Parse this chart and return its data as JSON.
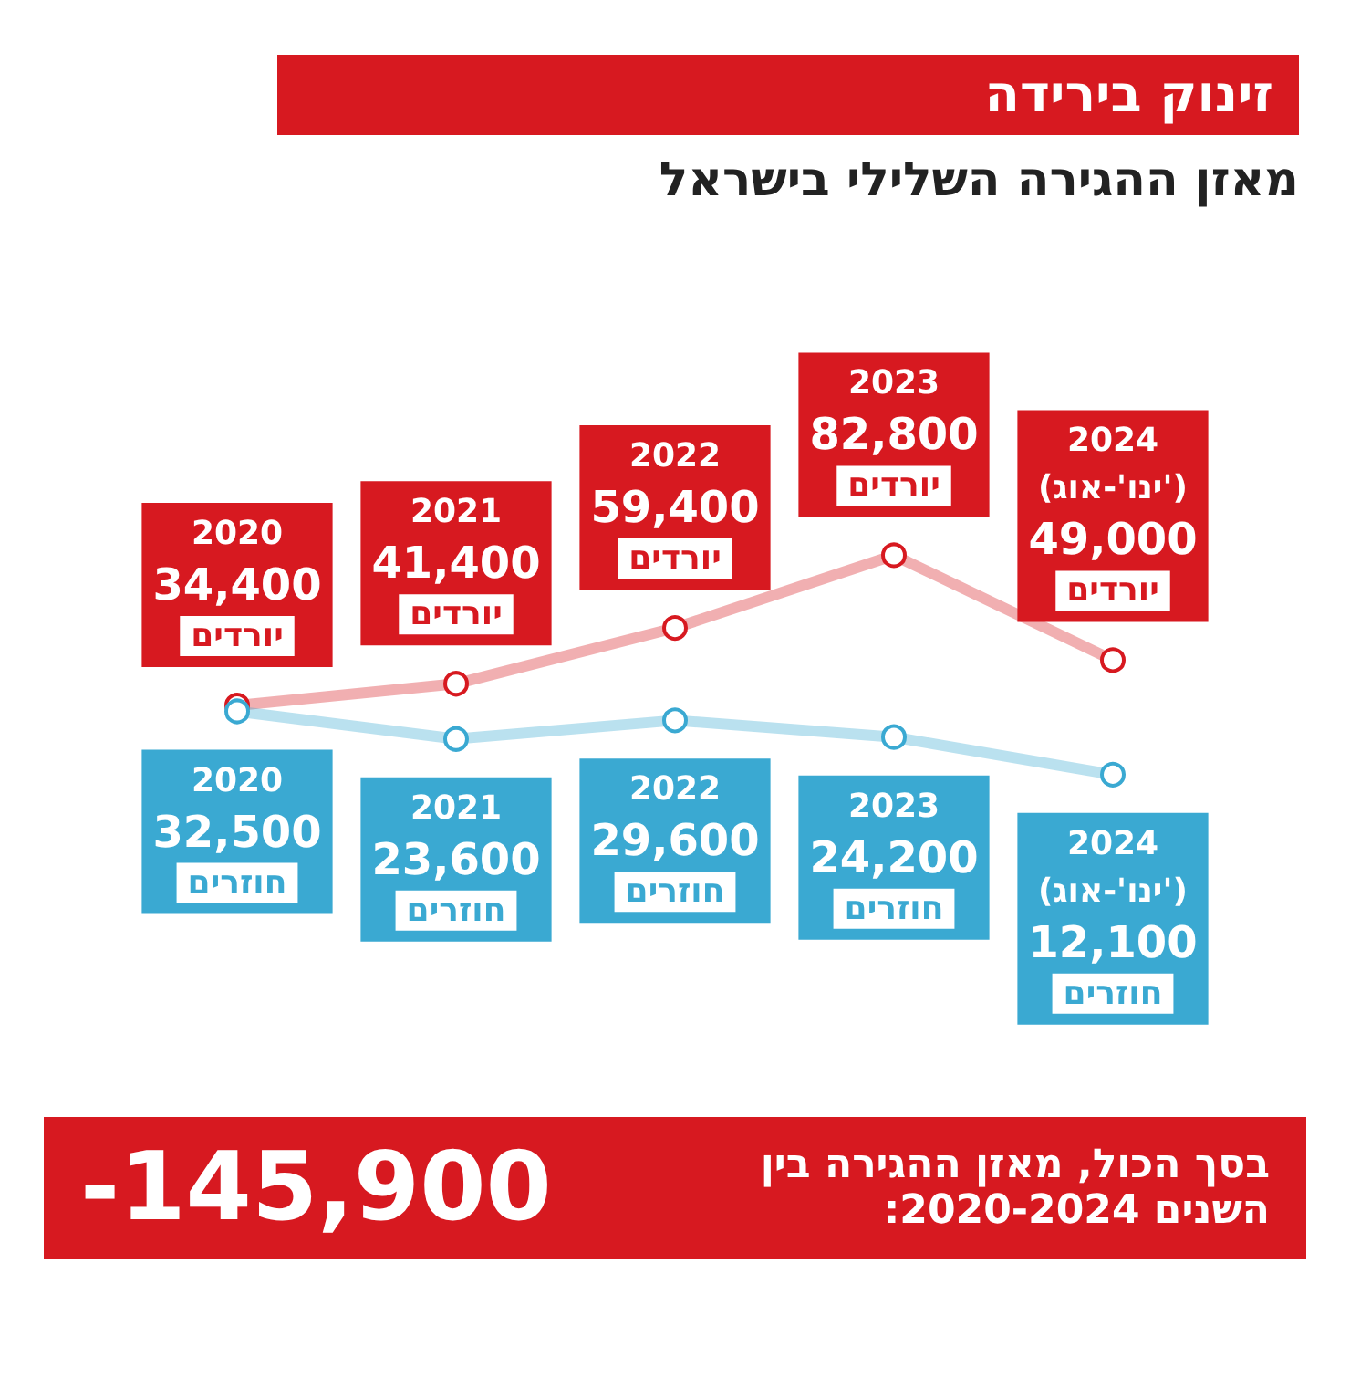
{
  "chart_data": {
    "type": "line",
    "title": "זינוק בירידה",
    "subtitle": "מאזן ההגירה השלילי בישראל",
    "categories": [
      "2020",
      "2021",
      "2022",
      "2023",
      "2024 (ינו'-אוג')"
    ],
    "series": [
      {
        "name": "יורדים",
        "color": "#d71920",
        "values": [
          34400,
          41400,
          59400,
          82800,
          49000
        ],
        "value_labels": [
          "34,400",
          "41,400",
          "59,400",
          "82,800",
          "49,000"
        ]
      },
      {
        "name": "חוזרים",
        "color": "#3aa9d2",
        "values": [
          32500,
          23600,
          29600,
          24200,
          12100
        ],
        "value_labels": [
          "32,500",
          "23,600",
          "29,600",
          "24,200",
          "12,100"
        ]
      }
    ],
    "annotations": [
      "בסך הכול, מאזן ההגירה בין השנים 2020-2024:",
      "-145,900"
    ],
    "marker": "circle",
    "line_style": "solid",
    "legend": false,
    "grid": false,
    "tick_labels": false
  }
}
